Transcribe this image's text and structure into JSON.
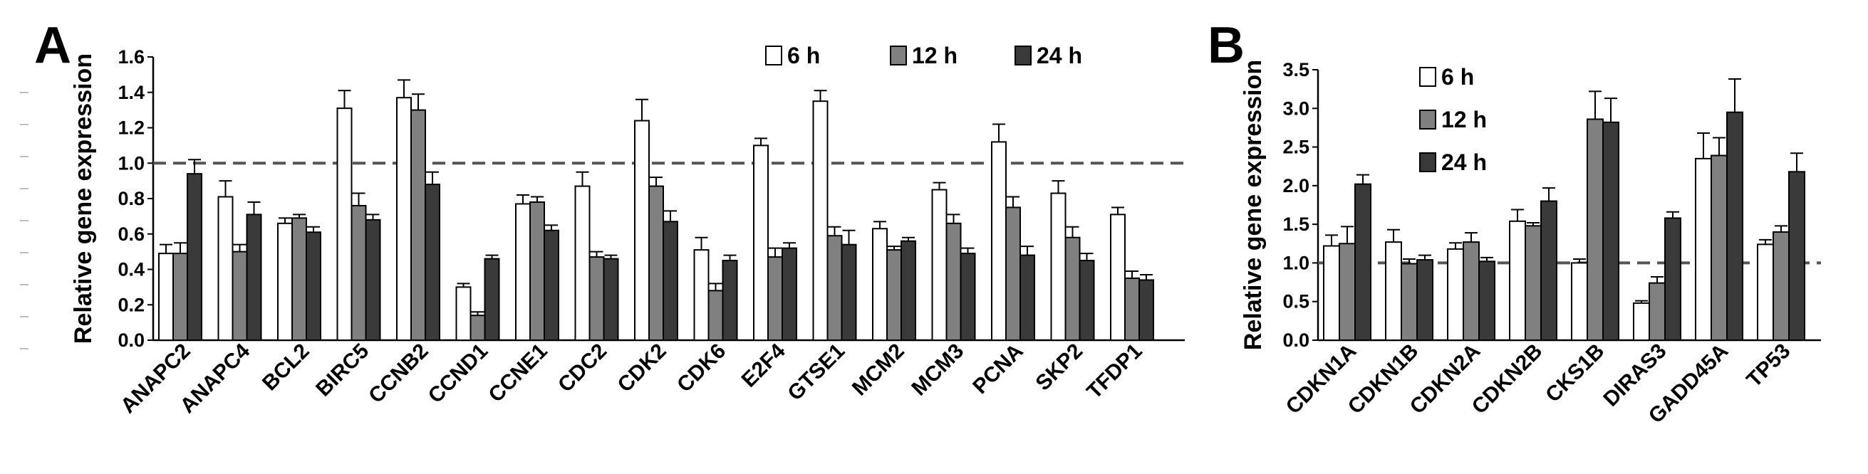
{
  "colors": {
    "6 h": "#ffffff",
    "12 h": "#808080",
    "24 h": "#3a3a3a",
    "reference_line": "#555555"
  },
  "chart_data": [
    {
      "panel": "A",
      "type": "bar",
      "ylabel": "Relative gene expression",
      "ylim": [
        0,
        1.6
      ],
      "yticks": [
        "0.0",
        "0.2",
        "0.4",
        "0.6",
        "0.8",
        "1.0",
        "1.2",
        "1.4",
        "1.6"
      ],
      "reference_line": 1.0,
      "legend_position": "top-right",
      "categories": [
        "ANAPC2",
        "ANAPC4",
        "BCL2",
        "BIRC5",
        "CCNB2",
        "CCND1",
        "CCNE1",
        "CDC2",
        "CDK2",
        "CDK6",
        "E2F4",
        "GTSE1",
        "MCM2",
        "MCM3",
        "PCNA",
        "SKP2",
        "TFDP1"
      ],
      "series": [
        {
          "name": "6 h",
          "values": [
            0.49,
            0.81,
            0.66,
            1.31,
            1.37,
            0.3,
            0.77,
            0.87,
            1.24,
            0.51,
            1.1,
            1.35,
            0.63,
            0.85,
            1.12,
            0.83,
            0.71
          ],
          "errors": [
            0.05,
            0.09,
            0.03,
            0.1,
            0.1,
            0.02,
            0.05,
            0.08,
            0.12,
            0.07,
            0.04,
            0.06,
            0.04,
            0.04,
            0.1,
            0.07,
            0.04
          ]
        },
        {
          "name": "12 h",
          "values": [
            0.49,
            0.5,
            0.69,
            0.76,
            1.3,
            0.14,
            0.78,
            0.47,
            0.87,
            0.28,
            0.47,
            0.59,
            0.51,
            0.66,
            0.75,
            0.58,
            0.35
          ],
          "errors": [
            0.06,
            0.04,
            0.02,
            0.07,
            0.09,
            0.02,
            0.03,
            0.03,
            0.05,
            0.04,
            0.05,
            0.05,
            0.02,
            0.05,
            0.06,
            0.06,
            0.04
          ]
        },
        {
          "name": "24 h",
          "values": [
            0.94,
            0.71,
            0.61,
            0.68,
            0.88,
            0.46,
            0.62,
            0.46,
            0.67,
            0.45,
            0.52,
            0.54,
            0.56,
            0.49,
            0.48,
            0.45,
            0.34
          ],
          "errors": [
            0.08,
            0.07,
            0.03,
            0.03,
            0.07,
            0.02,
            0.03,
            0.02,
            0.06,
            0.03,
            0.03,
            0.08,
            0.02,
            0.03,
            0.05,
            0.04,
            0.03
          ]
        }
      ]
    },
    {
      "panel": "B",
      "type": "bar",
      "ylabel": "Relative gene expression",
      "ylim": [
        0,
        3.5
      ],
      "yticks": [
        "0.0",
        "0.5",
        "1.0",
        "1.5",
        "2.0",
        "2.5",
        "3.0",
        "3.5"
      ],
      "reference_line": 1.0,
      "legend_position": "top-left",
      "categories": [
        "CDKN1A",
        "CDKN1B",
        "CDKN2A",
        "CDKN2B",
        "CKS1B",
        "DIRAS3",
        "GADD45A",
        "TP53"
      ],
      "series": [
        {
          "name": "6 h",
          "values": [
            1.22,
            1.27,
            1.18,
            1.54,
            1.0,
            0.48,
            2.35,
            1.24
          ],
          "errors": [
            0.14,
            0.16,
            0.08,
            0.15,
            0.05,
            0.03,
            0.33,
            0.06
          ]
        },
        {
          "name": "12 h",
          "values": [
            1.25,
            0.99,
            1.27,
            1.48,
            2.86,
            0.74,
            2.39,
            1.4
          ],
          "errors": [
            0.22,
            0.06,
            0.12,
            0.04,
            0.36,
            0.08,
            0.23,
            0.08
          ]
        },
        {
          "name": "24 h",
          "values": [
            2.02,
            1.04,
            1.02,
            1.8,
            2.82,
            1.58,
            2.95,
            2.18
          ],
          "errors": [
            0.12,
            0.06,
            0.05,
            0.17,
            0.31,
            0.08,
            0.43,
            0.24
          ]
        }
      ]
    }
  ]
}
